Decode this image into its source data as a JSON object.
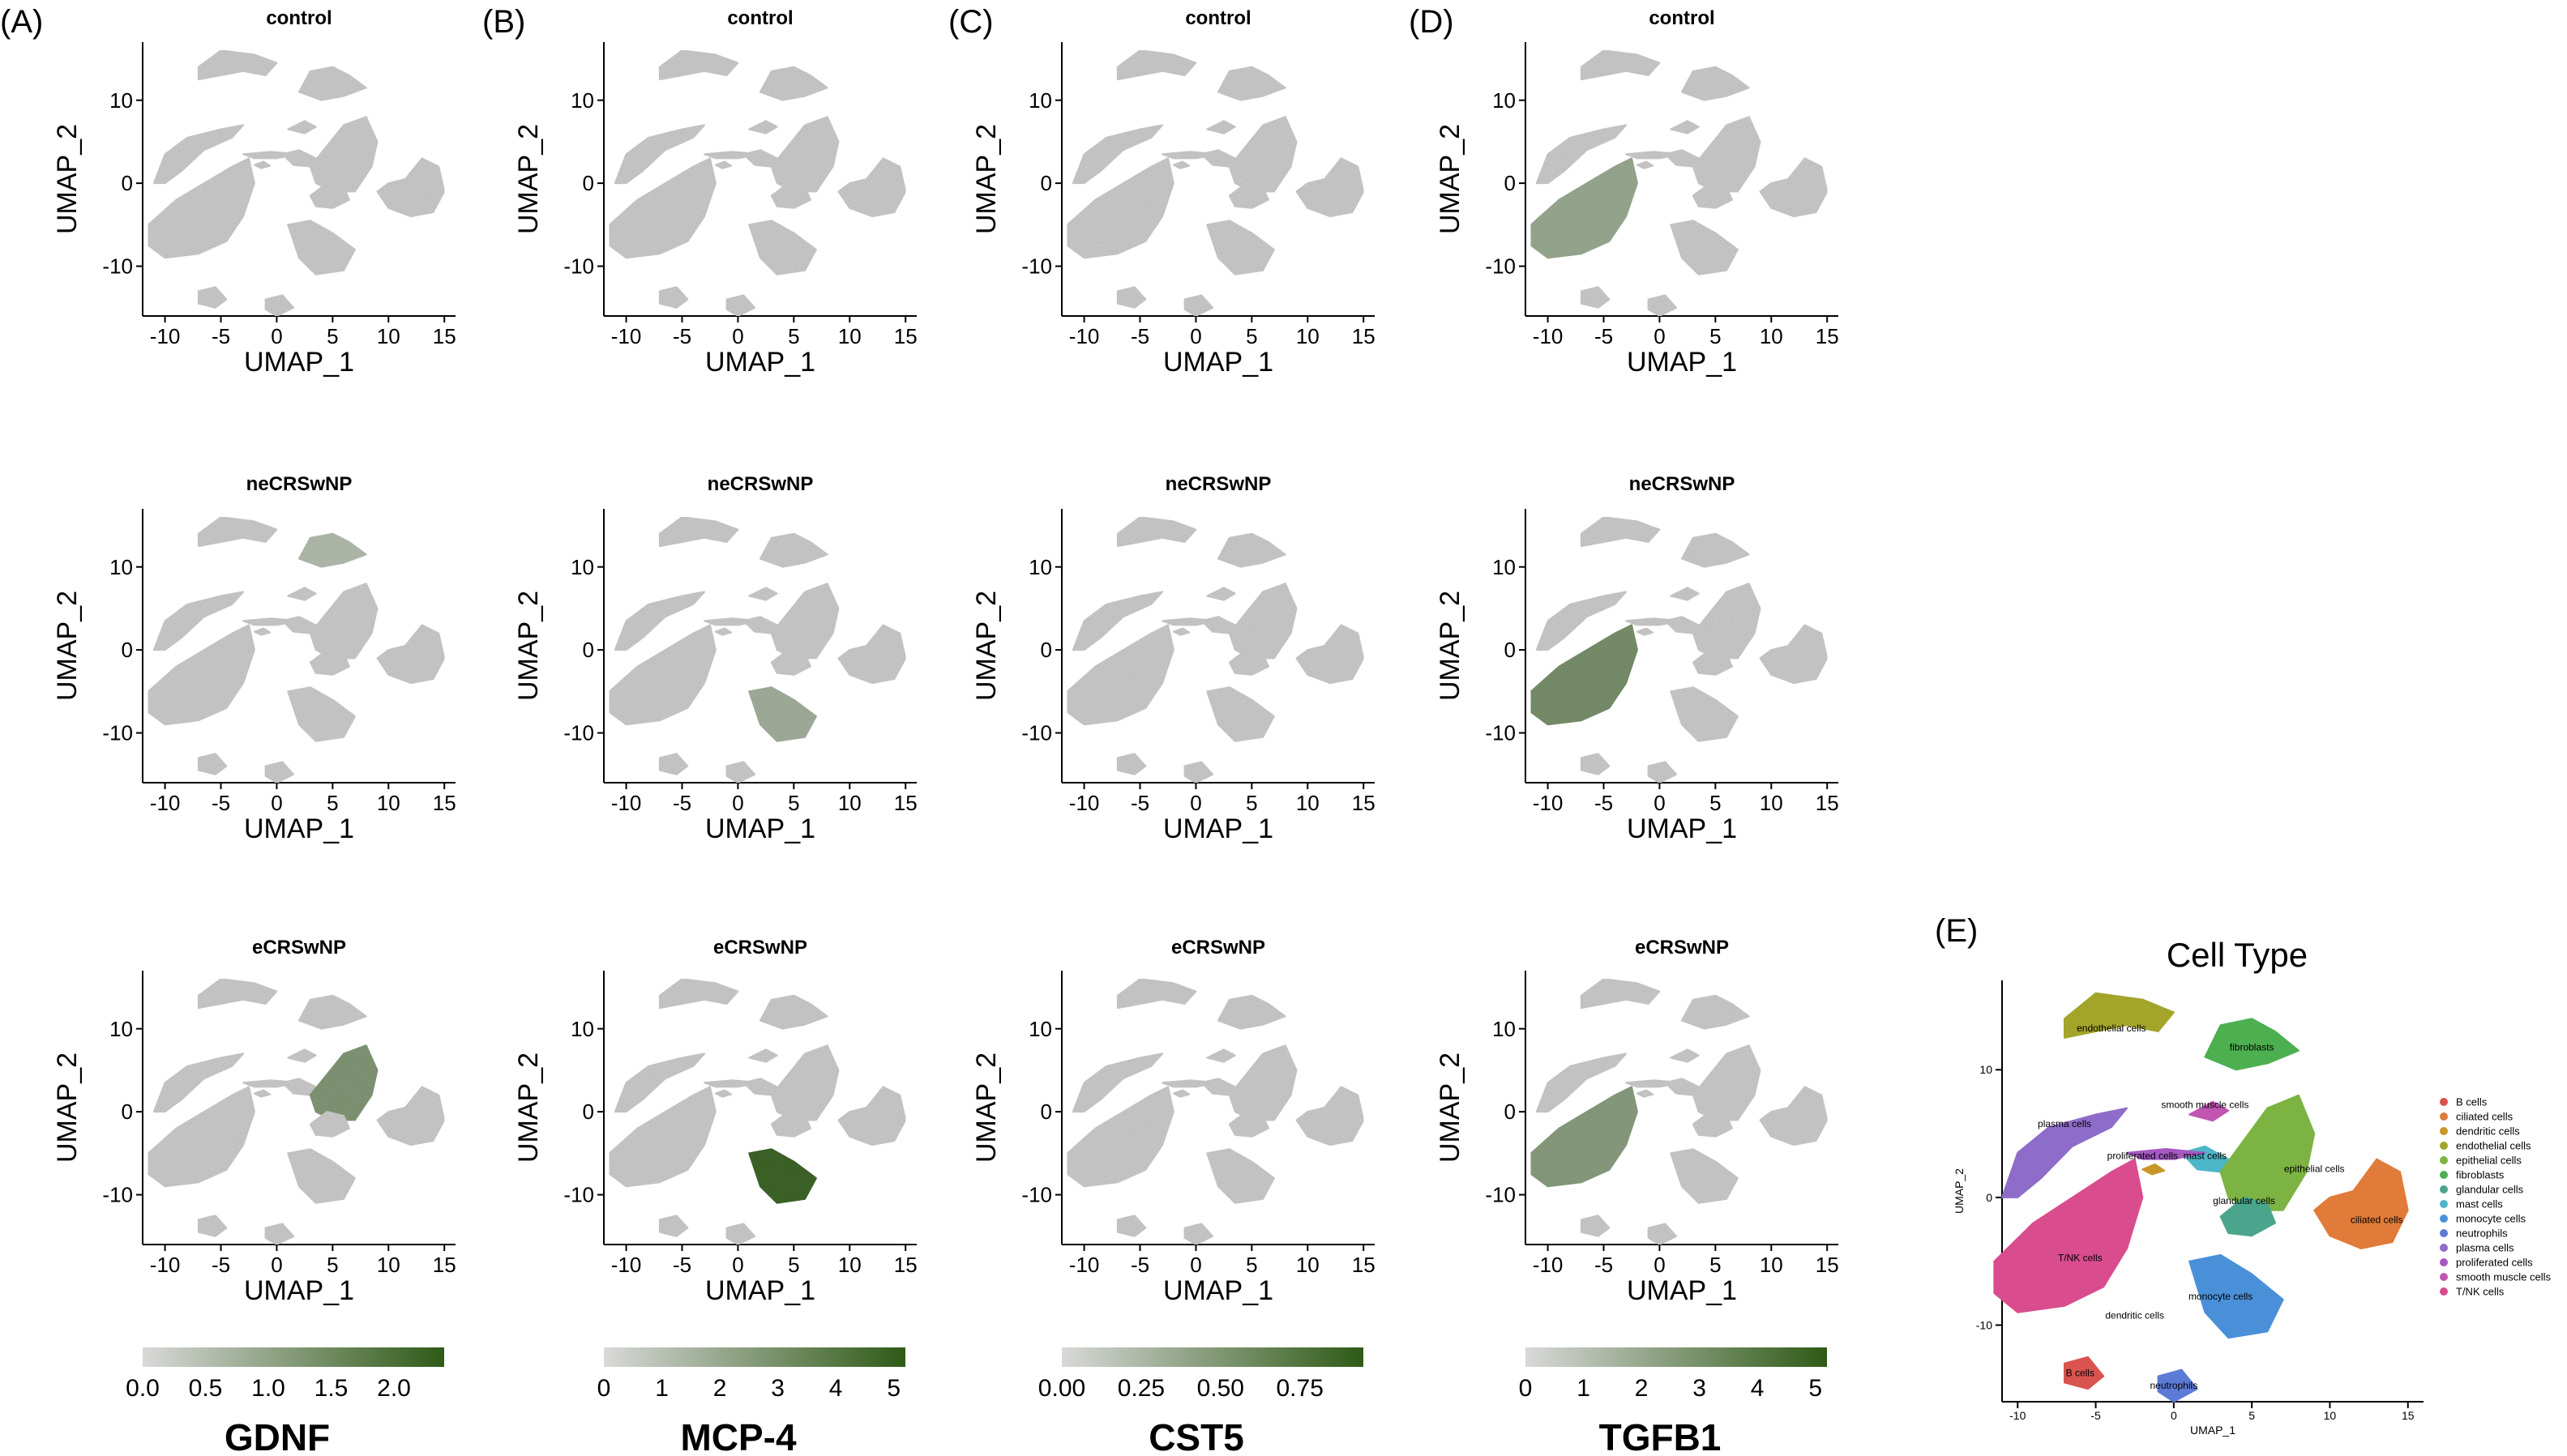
{
  "panel_letters": [
    "(A)",
    "(B)",
    "(C)",
    "(D)",
    "(E)"
  ],
  "conditions": [
    "control",
    "neCRSwNP",
    "eCRSwNP"
  ],
  "colors": {
    "cluster_gray": "#cfcfcf",
    "expr_low": "#d9d9d9",
    "expr_high": "#2e5a16"
  },
  "chart_data": [
    {
      "type": "scatter",
      "gene": "GDNF",
      "xlabel": "UMAP_1",
      "ylabel": "UMAP_2",
      "xticks": [
        -10,
        -5,
        0,
        5,
        10,
        15
      ],
      "yticks": [
        10,
        0,
        -10
      ],
      "xlim": [
        -12,
        16
      ],
      "ylim": [
        -16,
        17
      ],
      "colorbar": {
        "min": 0,
        "max": 2.4,
        "ticks": [
          "0.0",
          "0.5",
          "1.0",
          "1.5",
          "2.0"
        ]
      },
      "highlight": [
        {
          "condition": "control",
          "cluster": "none",
          "level": 0.0
        },
        {
          "condition": "neCRSwNP",
          "cluster": "fibroblasts",
          "level": 0.2
        },
        {
          "condition": "eCRSwNP",
          "cluster": "epithelial cells",
          "level": 0.5
        }
      ]
    },
    {
      "type": "scatter",
      "gene": "MCP-4",
      "xlabel": "UMAP_1",
      "ylabel": "UMAP_2",
      "xticks": [
        -10,
        -5,
        0,
        5,
        10,
        15
      ],
      "yticks": [
        10,
        0,
        -10
      ],
      "xlim": [
        -12,
        16
      ],
      "ylim": [
        -16,
        17
      ],
      "colorbar": {
        "min": 0,
        "max": 5.2,
        "ticks": [
          "0",
          "1",
          "2",
          "3",
          "4",
          "5"
        ]
      },
      "highlight": [
        {
          "condition": "control",
          "cluster": "none",
          "level": 0.0
        },
        {
          "condition": "neCRSwNP",
          "cluster": "monocyte cells",
          "level": 0.3
        },
        {
          "condition": "eCRSwNP",
          "cluster": "monocyte cells",
          "level": 0.9
        }
      ]
    },
    {
      "type": "scatter",
      "gene": "CST5",
      "xlabel": "UMAP_1",
      "ylabel": "UMAP_2",
      "xticks": [
        -10,
        -5,
        0,
        5,
        10,
        15
      ],
      "yticks": [
        10,
        0,
        -10
      ],
      "xlim": [
        -12,
        16
      ],
      "ylim": [
        -16,
        17
      ],
      "colorbar": {
        "min": 0,
        "max": 0.95,
        "ticks": [
          "0.00",
          "0.25",
          "0.50",
          "0.75"
        ]
      },
      "highlight": [
        {
          "condition": "control",
          "cluster": "none",
          "level": 0.0
        },
        {
          "condition": "neCRSwNP",
          "cluster": "none",
          "level": 0.0
        },
        {
          "condition": "eCRSwNP",
          "cluster": "none",
          "level": 0.0
        }
      ]
    },
    {
      "type": "scatter",
      "gene": "TGFB1",
      "xlabel": "UMAP_1",
      "ylabel": "UMAP_2",
      "xticks": [
        -10,
        -5,
        0,
        5,
        10,
        15
      ],
      "yticks": [
        10,
        0,
        -10
      ],
      "xlim": [
        -12,
        16
      ],
      "ylim": [
        -16,
        17
      ],
      "colorbar": {
        "min": 0,
        "max": 5.2,
        "ticks": [
          "0",
          "1",
          "2",
          "3",
          "4",
          "5"
        ]
      },
      "highlight": [
        {
          "condition": "control",
          "cluster": "T/NK cells",
          "level": 0.35
        },
        {
          "condition": "neCRSwNP",
          "cluster": "T/NK cells",
          "level": 0.55
        },
        {
          "condition": "eCRSwNP",
          "cluster": "T/NK cells",
          "level": 0.45
        }
      ]
    },
    {
      "type": "scatter",
      "title": "Cell Type",
      "xlabel": "UMAP_1",
      "ylabel": "UMAP_2",
      "xticks": [
        -10,
        -5,
        0,
        5,
        10,
        15
      ],
      "yticks": [
        10,
        0,
        -10
      ],
      "xlim": [
        -11,
        16
      ],
      "ylim": [
        -16,
        17
      ],
      "clusters": [
        {
          "name": "B cells",
          "label": "B cells",
          "color": "#d9534f",
          "x": -6,
          "y": -14
        },
        {
          "name": "ciliated cells",
          "label": "ciliated cells",
          "color": "#e07b39",
          "x": 13,
          "y": -2
        },
        {
          "name": "dendritic cells",
          "label": "dendritic cells",
          "color": "#c9962a",
          "x": -2.5,
          "y": -9.5
        },
        {
          "name": "endothelial cells",
          "label": "endothelial cells",
          "color": "#a3a42a",
          "x": -4,
          "y": 13
        },
        {
          "name": "epithelial cells",
          "label": "epithelial cells",
          "color": "#7cb342",
          "x": 9,
          "y": 2
        },
        {
          "name": "fibroblasts",
          "label": "fibroblasts",
          "color": "#4caf50",
          "x": 5,
          "y": 11.5
        },
        {
          "name": "glandular cells",
          "label": "glandular cells",
          "color": "#4aa58c",
          "x": 4.5,
          "y": -0.5
        },
        {
          "name": "mast cells",
          "label": "mast cells",
          "color": "#4db6c8",
          "x": 2,
          "y": 3
        },
        {
          "name": "monocyte cells",
          "label": "monocyte cells",
          "color": "#4a90d9",
          "x": 3,
          "y": -8
        },
        {
          "name": "neutrophils",
          "label": "neutrophils",
          "color": "#5b7bd6",
          "x": 0,
          "y": -15
        },
        {
          "name": "plasma cells",
          "label": "plasma cells",
          "color": "#8e6cc9",
          "x": -7,
          "y": 5.5
        },
        {
          "name": "proliferated cells",
          "label": "proliferated cells",
          "color": "#a558c2",
          "x": -2,
          "y": 3
        },
        {
          "name": "smooth muscle cells",
          "label": "smooth muscle cells",
          "color": "#c155b0",
          "x": 2,
          "y": 7
        },
        {
          "name": "T/NK cells",
          "label": "T/NK cells",
          "color": "#d94c8e",
          "x": -6,
          "y": -5
        }
      ]
    }
  ]
}
